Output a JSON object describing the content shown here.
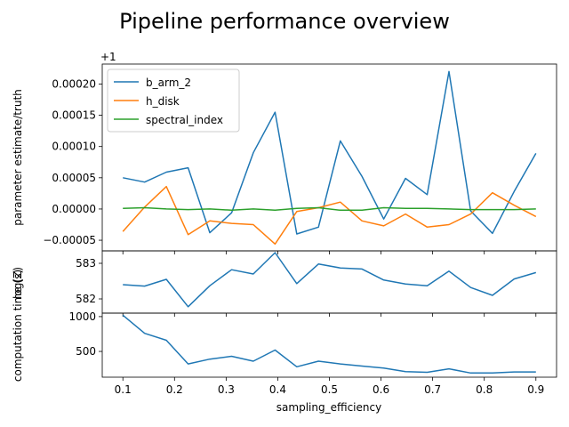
{
  "figure": {
    "title": "Pipeline performance overview"
  },
  "chart_data": [
    {
      "type": "line",
      "x": [
        0.1,
        0.1421,
        0.1842,
        0.2263,
        0.2684,
        0.3105,
        0.3526,
        0.3947,
        0.4368,
        0.4789,
        0.5211,
        0.5632,
        0.6053,
        0.6474,
        0.6895,
        0.7316,
        0.7737,
        0.8158,
        0.8579,
        0.9
      ],
      "xlabel": "",
      "ylabel": "parameter estimate/truth",
      "y_offset_label": "+1",
      "y_offset": 1,
      "ylim": [
        -6.7e-05,
        0.000232
      ],
      "yticks": [
        -5e-05,
        0.0,
        5e-05,
        0.0001,
        0.00015,
        0.0002
      ],
      "ytick_labels": [
        "−0.00005",
        "0.00000",
        "0.00005",
        "0.00010",
        "0.00015",
        "0.00020"
      ],
      "legend": {
        "position": "top-left"
      },
      "series": [
        {
          "name": "b_arm_2",
          "color": "#1f77b4",
          "values": [
            5e-05,
            4.3e-05,
            5.9e-05,
            6.6e-05,
            -3.8e-05,
            -6e-06,
            9e-05,
            0.000155,
            -4e-05,
            -2.9e-05,
            0.000109,
            5.2e-05,
            -1.6e-05,
            4.9e-05,
            2.3e-05,
            0.00022,
            -3e-06,
            -3.9e-05,
            2.8e-05,
            8.9e-05
          ]
        },
        {
          "name": "h_disk",
          "color": "#ff7f0e",
          "values": [
            -3.6e-05,
            3e-06,
            3.6e-05,
            -4.1e-05,
            -1.9e-05,
            -2.3e-05,
            -2.5e-05,
            -5.6e-05,
            -4e-06,
            2e-06,
            1.1e-05,
            -1.9e-05,
            -2.7e-05,
            -8e-06,
            -2.9e-05,
            -2.5e-05,
            -8e-06,
            2.6e-05,
            6e-06,
            -1.2e-05
          ]
        },
        {
          "name": "spectral_index",
          "color": "#2ca02c",
          "values": [
            1e-06,
            2e-06,
            0.0,
            -1e-06,
            0.0,
            -2e-06,
            0.0,
            -2e-06,
            1e-06,
            2e-06,
            -2e-06,
            -2e-06,
            2e-06,
            1e-06,
            1e-06,
            0.0,
            -1e-06,
            -1e-06,
            -1e-06,
            0.0
          ]
        }
      ]
    },
    {
      "type": "line",
      "x": [
        0.1,
        0.1421,
        0.1842,
        0.2263,
        0.2684,
        0.3105,
        0.3526,
        0.3947,
        0.4368,
        0.4789,
        0.5211,
        0.5632,
        0.6053,
        0.6474,
        0.6895,
        0.7316,
        0.7737,
        0.8158,
        0.8579,
        0.9
      ],
      "xlabel": "",
      "ylabel": "log(Z)",
      "ylim": [
        581.6,
        583.35
      ],
      "yticks": [
        582,
        583
      ],
      "ytick_labels": [
        "582",
        "583"
      ],
      "series": [
        {
          "name": "",
          "color": "#1f77b4",
          "values": [
            582.4,
            582.36,
            582.55,
            581.78,
            582.37,
            582.82,
            582.7,
            583.3,
            582.43,
            582.98,
            582.87,
            582.84,
            582.53,
            582.42,
            582.37,
            582.78,
            582.32,
            582.1,
            582.56,
            582.74
          ]
        }
      ]
    },
    {
      "type": "line",
      "x": [
        0.1,
        0.1421,
        0.1842,
        0.2263,
        0.2684,
        0.3105,
        0.3526,
        0.3947,
        0.4368,
        0.4789,
        0.5211,
        0.5632,
        0.6053,
        0.6474,
        0.6895,
        0.7316,
        0.7737,
        0.8158,
        0.8579,
        0.9
      ],
      "xlabel": "sampling_efficiency",
      "ylabel": "computation time (s)",
      "ylim": [
        130,
        1050
      ],
      "yticks": [
        500,
        1000
      ],
      "ytick_labels": [
        "500",
        "1000"
      ],
      "xlim": [
        0.06,
        0.94
      ],
      "xticks": [
        0.1,
        0.2,
        0.3,
        0.4,
        0.5,
        0.6,
        0.7,
        0.8,
        0.9
      ],
      "xtick_labels": [
        "0.1",
        "0.2",
        "0.3",
        "0.4",
        "0.5",
        "0.6",
        "0.7",
        "0.8",
        "0.9"
      ],
      "series": [
        {
          "name": "",
          "color": "#1f77b4",
          "values": [
            1020,
            760,
            660,
            320,
            390,
            430,
            360,
            520,
            280,
            360,
            320,
            290,
            260,
            210,
            200,
            250,
            190,
            190,
            205,
            205
          ]
        }
      ]
    }
  ]
}
